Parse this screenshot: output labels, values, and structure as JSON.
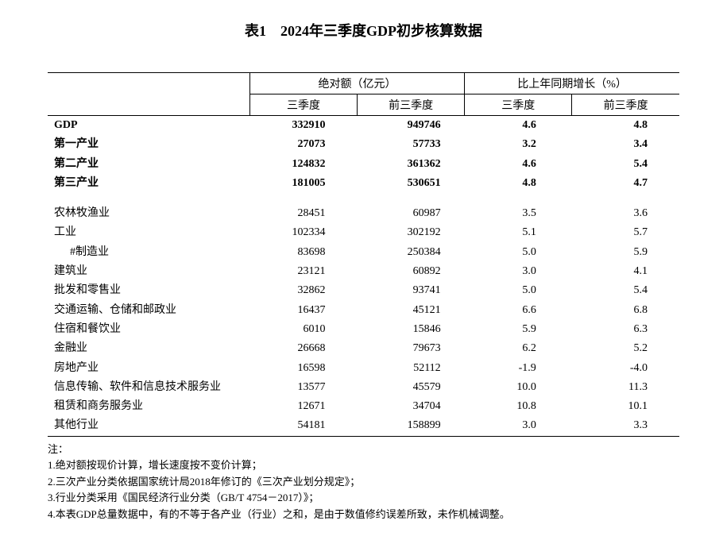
{
  "title": "表1　2024年三季度GDP初步核算数据",
  "header": {
    "group1": "绝对额（亿元）",
    "group2": "比上年同期增长（%）",
    "sub1": "三季度",
    "sub2": "前三季度",
    "sub3": "三季度",
    "sub4": "前三季度"
  },
  "rows_bold": [
    {
      "label": "GDP",
      "q3": "332910",
      "ytd": "949746",
      "g_q3": "4.6",
      "g_ytd": "4.8"
    },
    {
      "label": "第一产业",
      "q3": "27073",
      "ytd": "57733",
      "g_q3": "3.2",
      "g_ytd": "3.4"
    },
    {
      "label": "第二产业",
      "q3": "124832",
      "ytd": "361362",
      "g_q3": "4.6",
      "g_ytd": "5.4"
    },
    {
      "label": "第三产业",
      "q3": "181005",
      "ytd": "530651",
      "g_q3": "4.8",
      "g_ytd": "4.7"
    }
  ],
  "rows_detail": [
    {
      "label": "农林牧渔业",
      "q3": "28451",
      "ytd": "60987",
      "g_q3": "3.5",
      "g_ytd": "3.6",
      "indent": false
    },
    {
      "label": "工业",
      "q3": "102334",
      "ytd": "302192",
      "g_q3": "5.1",
      "g_ytd": "5.7",
      "indent": false
    },
    {
      "label": "#制造业",
      "q3": "83698",
      "ytd": "250384",
      "g_q3": "5.0",
      "g_ytd": "5.9",
      "indent": true
    },
    {
      "label": "建筑业",
      "q3": "23121",
      "ytd": "60892",
      "g_q3": "3.0",
      "g_ytd": "4.1",
      "indent": false
    },
    {
      "label": "批发和零售业",
      "q3": "32862",
      "ytd": "93741",
      "g_q3": "5.0",
      "g_ytd": "5.4",
      "indent": false
    },
    {
      "label": "交通运输、仓储和邮政业",
      "q3": "16437",
      "ytd": "45121",
      "g_q3": "6.6",
      "g_ytd": "6.8",
      "indent": false
    },
    {
      "label": "住宿和餐饮业",
      "q3": "6010",
      "ytd": "15846",
      "g_q3": "5.9",
      "g_ytd": "6.3",
      "indent": false
    },
    {
      "label": "金融业",
      "q3": "26668",
      "ytd": "79673",
      "g_q3": "6.2",
      "g_ytd": "5.2",
      "indent": false
    },
    {
      "label": "房地产业",
      "q3": "16598",
      "ytd": "52112",
      "g_q3": "-1.9",
      "g_ytd": "-4.0",
      "indent": false
    },
    {
      "label": "信息传输、软件和信息技术服务业",
      "q3": "13577",
      "ytd": "45579",
      "g_q3": "10.0",
      "g_ytd": "11.3",
      "indent": false
    },
    {
      "label": "租赁和商务服务业",
      "q3": "12671",
      "ytd": "34704",
      "g_q3": "10.8",
      "g_ytd": "10.1",
      "indent": false
    },
    {
      "label": "其他行业",
      "q3": "54181",
      "ytd": "158899",
      "g_q3": "3.0",
      "g_ytd": "3.3",
      "indent": false
    }
  ],
  "notes": {
    "head": "注：",
    "n1": "1.绝对额按现价计算，增长速度按不变价计算；",
    "n2": "2.三次产业分类依据国家统计局2018年修订的《三次产业划分规定》；",
    "n3": "3.行业分类采用《国民经济行业分类（GB/T 4754－2017）》；",
    "n4": "4.本表GDP总量数据中，有的不等于各产业（行业）之和，是由于数值修约误差所致，未作机械调整。"
  }
}
